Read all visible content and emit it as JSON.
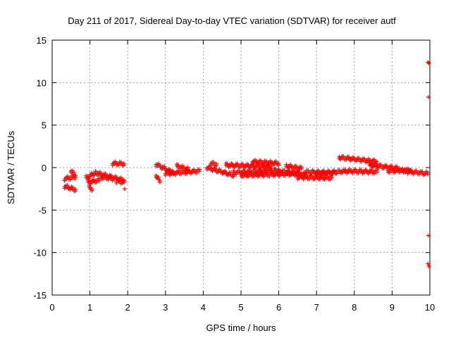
{
  "chart_data": {
    "type": "scatter",
    "title": "Day 211 of 2017, Sidereal Day-to-day VTEC variation (SDTVAR) for receiver autf",
    "xlabel": "GPS time / hours",
    "ylabel": "SDTVAR / TECUs",
    "xlim": [
      0,
      10
    ],
    "ylim": [
      -15,
      15
    ],
    "xticks": [
      "0",
      "1",
      "2",
      "3",
      "4",
      "5",
      "6",
      "7",
      "8",
      "9",
      "10"
    ],
    "yticks": [
      "15",
      "10",
      "5",
      "0",
      "-5",
      "-10",
      "-15"
    ],
    "grid": true,
    "marker": "+",
    "color": "#ff0000",
    "segments": [
      {
        "x": [
          0.33,
          0.6
        ],
        "y": [
          -1.2,
          -1.0
        ]
      },
      {
        "x": [
          0.33,
          0.62
        ],
        "y": [
          -2.1,
          -2.5
        ]
      },
      {
        "x": [
          0.5,
          0.62
        ],
        "y": [
          -0.3,
          -0.8
        ]
      },
      {
        "x": [
          0.9,
          1.15
        ],
        "y": [
          -1.1,
          -0.5
        ]
      },
      {
        "x": [
          0.95,
          1.25
        ],
        "y": [
          -1.6,
          -1.4
        ]
      },
      {
        "x": [
          0.98,
          1.05
        ],
        "y": [
          -2.2,
          -2.4
        ]
      },
      {
        "x": [
          1.15,
          1.9
        ],
        "y": [
          -0.5,
          -1.4
        ]
      },
      {
        "x": [
          1.3,
          1.6
        ],
        "y": [
          -1.0,
          -1.2
        ]
      },
      {
        "x": [
          1.6,
          1.9
        ],
        "y": [
          0.6,
          0.55
        ]
      },
      {
        "x": [
          1.7,
          1.9
        ],
        "y": [
          -1.5,
          -1.6
        ]
      },
      {
        "x": [
          2.75,
          3.2
        ],
        "y": [
          0.5,
          -0.5
        ]
      },
      {
        "x": [
          2.75,
          2.85
        ],
        "y": [
          -0.8,
          -1.5
        ]
      },
      {
        "x": [
          3.0,
          3.9
        ],
        "y": [
          -0.6,
          -0.3
        ]
      },
      {
        "x": [
          3.3,
          3.6
        ],
        "y": [
          0.3,
          -0.1
        ]
      },
      {
        "x": [
          4.1,
          4.8
        ],
        "y": [
          0.1,
          -0.8
        ]
      },
      {
        "x": [
          4.2,
          4.35
        ],
        "y": [
          0.6,
          0.5
        ]
      },
      {
        "x": [
          4.6,
          5.8
        ],
        "y": [
          0.4,
          0.2
        ]
      },
      {
        "x": [
          4.8,
          6.0
        ],
        "y": [
          -0.5,
          -0.2
        ]
      },
      {
        "x": [
          5.0,
          6.5
        ],
        "y": [
          -0.8,
          -0.6
        ]
      },
      {
        "x": [
          5.3,
          6.0
        ],
        "y": [
          0.8,
          0.6
        ]
      },
      {
        "x": [
          6.0,
          6.7
        ],
        "y": [
          -0.3,
          -0.7
        ]
      },
      {
        "x": [
          6.2,
          6.6
        ],
        "y": [
          0.3,
          0.0
        ]
      },
      {
        "x": [
          6.5,
          7.4
        ],
        "y": [
          -1.0,
          -1.1
        ]
      },
      {
        "x": [
          6.7,
          7.5
        ],
        "y": [
          -0.4,
          -0.5
        ]
      },
      {
        "x": [
          7.0,
          7.8
        ],
        "y": [
          -0.6,
          -0.3
        ]
      },
      {
        "x": [
          7.6,
          8.6
        ],
        "y": [
          1.3,
          0.8
        ]
      },
      {
        "x": [
          7.8,
          8.6
        ],
        "y": [
          -0.3,
          -0.4
        ]
      },
      {
        "x": [
          8.4,
          9.2
        ],
        "y": [
          0.4,
          0.0
        ]
      },
      {
        "x": [
          8.9,
          9.5
        ],
        "y": [
          -0.3,
          -0.2
        ]
      },
      {
        "x": [
          9.3,
          9.95
        ],
        "y": [
          -0.3,
          -0.6
        ]
      }
    ],
    "points": [
      {
        "x": 1.92,
        "y": -2.5
      },
      {
        "x": 9.95,
        "y": 12.4
      },
      {
        "x": 9.97,
        "y": 12.3
      },
      {
        "x": 9.96,
        "y": 8.3
      },
      {
        "x": 9.96,
        "y": -8.0
      },
      {
        "x": 9.95,
        "y": -11.3
      },
      {
        "x": 9.97,
        "y": -11.6
      }
    ]
  }
}
